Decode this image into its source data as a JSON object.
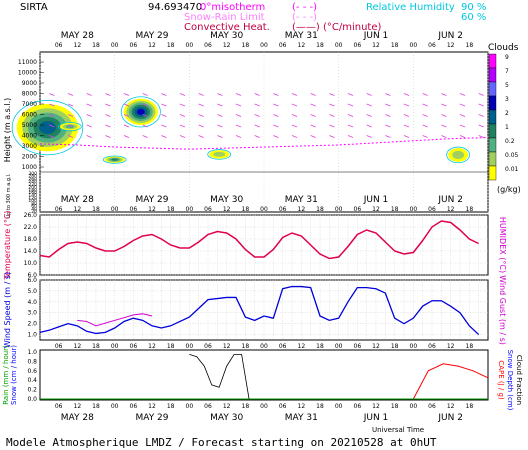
{
  "header": {
    "station": "SIRTA",
    "station_coords": "94.693470",
    "legend_misotherm": "0°misotherm",
    "legend_misotherm_key": "(- - -)",
    "legend_snowrain": "Snow-Rain Limit",
    "legend_snowrain_key": "(- - -)",
    "legend_convective": "Convective Heat.",
    "legend_convective_key": "(——) (°C/minute)",
    "legend_rh": "Relative Humidity",
    "legend_rh_90": "90 %",
    "legend_rh_60": "60 %"
  },
  "footer": {
    "title": "Modele Atmospherique LMDZ / Forecast starting on 20210528 at 0hUT",
    "universal_time": "Universal Time"
  },
  "time_axis": {
    "hour_ticks": [
      "06",
      "12",
      "18",
      "00",
      "06",
      "12",
      "18",
      "00",
      "06",
      "12",
      "18",
      "00",
      "06",
      "12",
      "18",
      "00",
      "06",
      "12",
      "18",
      "00",
      "06",
      "12",
      "18"
    ],
    "day_labels": [
      "MAY 28",
      "MAY 29",
      "MAY 30",
      "MAY 31",
      "JUN  1",
      "JUN  2"
    ]
  },
  "clouds_colorbar": {
    "title": "Clouds",
    "labels": [
      "9",
      "7",
      "5",
      "3",
      "2",
      "1",
      "0.2",
      "0.05",
      "0.01"
    ],
    "units": "(g/kg)",
    "colors": [
      "#ff00ff",
      "#b400ff",
      "#6464ff",
      "#0000b4",
      "#00608c",
      "#208060",
      "#50b080",
      "#a0d060",
      "#ffff00"
    ]
  },
  "colors": {
    "temperature": "#e0004c",
    "wind": "#0000dd",
    "gust": "#d000d0",
    "rh": "#00c8e0",
    "isotherm": "#ff00ff",
    "rain": "#00a000",
    "snow": "#0000ff",
    "cloudfrac": "#000000",
    "cape": "#ff0000",
    "grid": "#b0b0b0"
  },
  "chart_data": [
    {
      "type": "heatmap",
      "title": "",
      "ylabel": "Height (m a.s.l.)",
      "ylabel_low": "Up to 300 m a.g.l.",
      "yticks_upper": [
        "11000",
        "10000",
        "9000",
        "8000",
        "7000",
        "6000",
        "5000",
        "4000",
        "3000",
        "2000",
        "1000"
      ],
      "yticks_lower": [
        "300",
        "280",
        "260",
        "240",
        "220",
        "200",
        "180",
        "160",
        "140",
        "120",
        "100",
        "80",
        "60",
        "40",
        "20"
      ],
      "cloud_blobs": [
        {
          "day_pos": 0.1,
          "top_m": 7000,
          "bottom_m": 2500,
          "peak_gkg": 2
        },
        {
          "day_pos": 0.4,
          "top_m": 5200,
          "bottom_m": 4500,
          "peak_gkg": 0.2
        },
        {
          "day_pos": 1.35,
          "top_m": 7500,
          "bottom_m": 5000,
          "peak_gkg": 3
        },
        {
          "day_pos": 1.0,
          "top_m": 2000,
          "bottom_m": 1400,
          "peak_gkg": 1
        },
        {
          "day_pos": 2.4,
          "top_m": 2600,
          "bottom_m": 1800,
          "peak_gkg": 0.05
        },
        {
          "day_pos": 5.6,
          "top_m": 2800,
          "bottom_m": 1500,
          "peak_gkg": 0.05
        }
      ],
      "isotherm_0c_m": [
        3200,
        3100,
        2900,
        2800,
        2700,
        2800,
        2900,
        3000,
        3100,
        3300,
        3500,
        3700,
        3800
      ]
    },
    {
      "type": "line",
      "ylabel": "Temperature (°C)",
      "ylabel_right": "HUMIDEX (°C)",
      "yticks": [
        "26.0",
        "22.0",
        "18.0",
        "14.0",
        "10.0",
        "6.0"
      ],
      "ylim": [
        6.0,
        26.0
      ],
      "series": [
        {
          "key": "temperature",
          "x": [
            0,
            0.125,
            0.25,
            0.375,
            0.5,
            0.625,
            0.75,
            0.875,
            1,
            1.125,
            1.25,
            1.375,
            1.5,
            1.625,
            1.75,
            1.875,
            2,
            2.125,
            2.25,
            2.375,
            2.5,
            2.625,
            2.75,
            2.875,
            3,
            3.125,
            3.25,
            3.375,
            3.5,
            3.625,
            3.75,
            3.875,
            4,
            4.125,
            4.25,
            4.375,
            4.5,
            4.625,
            4.75,
            4.875,
            5,
            5.125,
            5.25,
            5.375,
            5.5,
            5.625,
            5.75,
            5.875
          ],
          "values": [
            12.5,
            12.0,
            14.5,
            16.5,
            17.0,
            16.5,
            15.0,
            14.0,
            14.0,
            15.5,
            17.5,
            19.0,
            19.5,
            18.0,
            16.0,
            15.0,
            15.0,
            17.0,
            19.5,
            20.5,
            20.0,
            18.0,
            14.5,
            12.0,
            12.0,
            14.5,
            18.5,
            20.0,
            19.0,
            16.0,
            13.0,
            11.5,
            12.0,
            15.5,
            19.5,
            21.0,
            20.0,
            17.0,
            14.0,
            13.0,
            13.5,
            17.5,
            22.0,
            24.0,
            23.5,
            21.0,
            18.0,
            16.5
          ]
        }
      ]
    },
    {
      "type": "line",
      "ylabel": "Wind Speed (m / s)",
      "ylabel_right": "Wind Gust (m / s)",
      "yticks": [
        "6.0",
        "5.0",
        "4.0",
        "3.0",
        "2.0",
        "1.0"
      ],
      "ylim": [
        0.5,
        6.0
      ],
      "series": [
        {
          "key": "wind",
          "x": [
            0,
            0.125,
            0.25,
            0.375,
            0.5,
            0.625,
            0.75,
            0.875,
            1,
            1.125,
            1.25,
            1.375,
            1.5,
            1.625,
            1.75,
            1.875,
            2,
            2.125,
            2.25,
            2.375,
            2.5,
            2.625,
            2.75,
            2.875,
            3,
            3.125,
            3.25,
            3.375,
            3.5,
            3.625,
            3.75,
            3.875,
            4,
            4.125,
            4.25,
            4.375,
            4.5,
            4.625,
            4.75,
            4.875,
            5,
            5.125,
            5.25,
            5.375,
            5.5,
            5.625,
            5.75,
            5.875
          ],
          "values": [
            1.2,
            1.4,
            1.7,
            2.0,
            1.8,
            1.3,
            1.1,
            1.2,
            1.6,
            2.2,
            2.5,
            2.3,
            1.8,
            1.6,
            1.8,
            2.2,
            2.6,
            3.4,
            4.2,
            4.3,
            4.4,
            4.4,
            2.6,
            2.3,
            2.7,
            2.5,
            5.2,
            5.4,
            5.4,
            5.3,
            2.7,
            2.3,
            2.5,
            4.0,
            5.3,
            5.3,
            5.2,
            4.8,
            2.5,
            2.0,
            2.5,
            3.6,
            4.1,
            4.1,
            3.6,
            3.0,
            1.8,
            1.0
          ]
        },
        {
          "key": "gust",
          "x": [
            0.5,
            0.625,
            0.75,
            1.25,
            1.375,
            1.5
          ],
          "values": [
            2.3,
            2.2,
            1.8,
            2.8,
            2.9,
            2.7
          ]
        }
      ]
    },
    {
      "type": "line",
      "ylabel": "Rain (mm / hour)",
      "ylabel_snow": "Snow (cm / hour)",
      "ylabel_right": "Cloud Fraction",
      "ylabel_right2": "Snow Depth (cm)",
      "ylabel_right3": "CAPE (J / g)",
      "yticks": [
        "1.0",
        "0.8",
        "0.6",
        "0.4",
        "0.2",
        "0.0"
      ],
      "ylim": [
        0.0,
        1.0
      ],
      "series": [
        {
          "key": "cloudfrac",
          "x": [
            2.0,
            2.1,
            2.2,
            2.3,
            2.4,
            2.5,
            2.6,
            2.7,
            2.8
          ],
          "values": [
            0.95,
            0.9,
            0.7,
            0.3,
            0.25,
            0.7,
            0.95,
            0.95,
            0.0
          ]
        },
        {
          "key": "cape",
          "x": [
            5.0,
            5.2,
            5.4,
            5.6,
            5.8,
            6.0
          ],
          "values": [
            0.0,
            0.6,
            0.75,
            0.7,
            0.6,
            0.45
          ]
        }
      ]
    }
  ]
}
